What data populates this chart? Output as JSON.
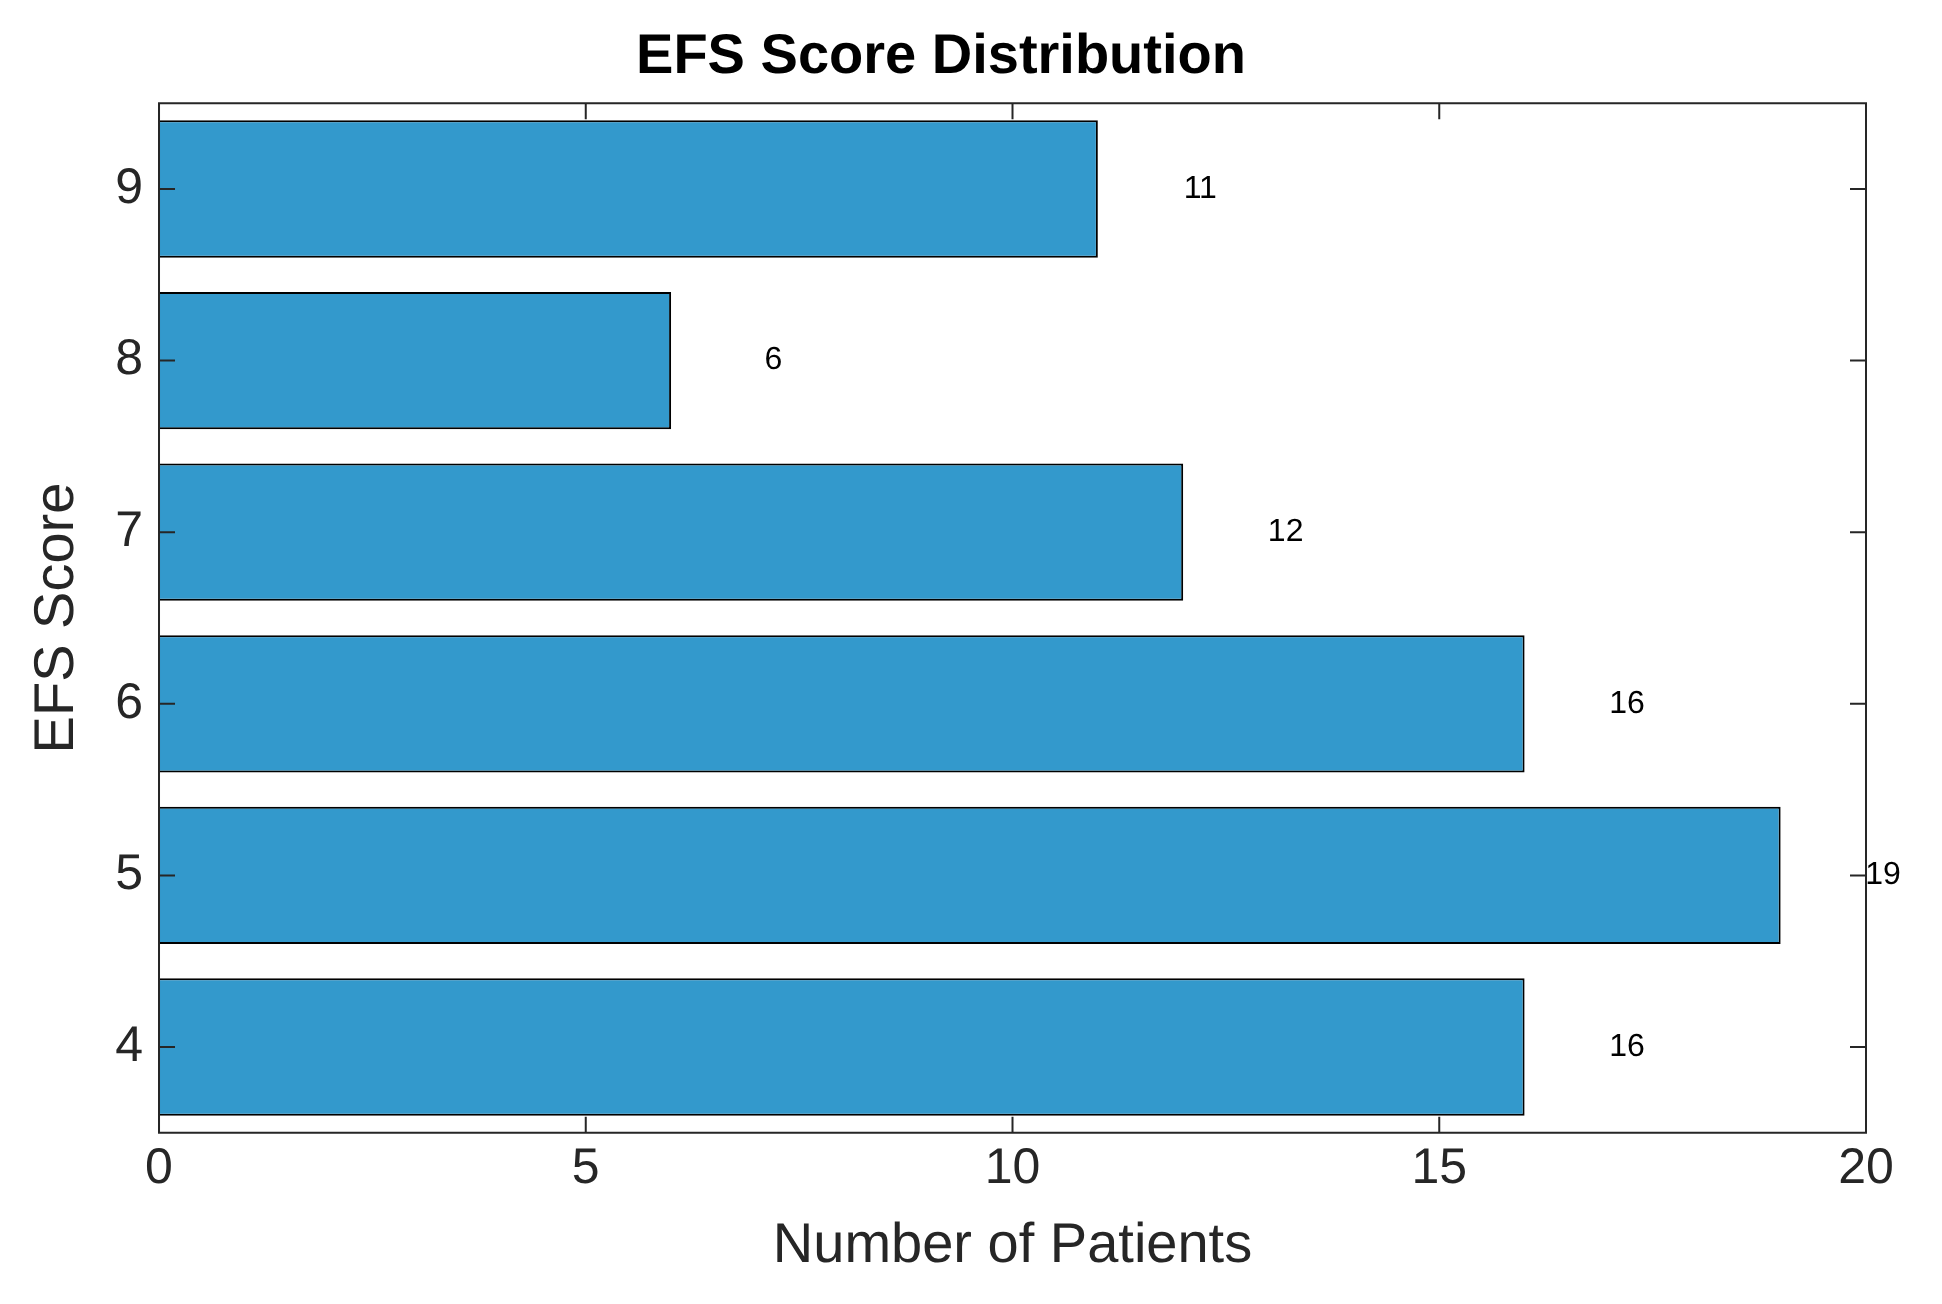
{
  "chart_data": {
    "type": "bar",
    "orientation": "horizontal",
    "title": "EFS Score Distribution",
    "xlabel": "Number of Patients",
    "ylabel": "EFS Score",
    "categories": [
      "9",
      "8",
      "7",
      "6",
      "5",
      "4"
    ],
    "values": [
      11,
      6,
      12,
      16,
      19,
      16
    ],
    "color": "#3399cc",
    "xlim": [
      0,
      20
    ],
    "xticks": [
      0,
      5,
      10,
      15,
      20
    ],
    "grid": false,
    "data_labels": true
  }
}
